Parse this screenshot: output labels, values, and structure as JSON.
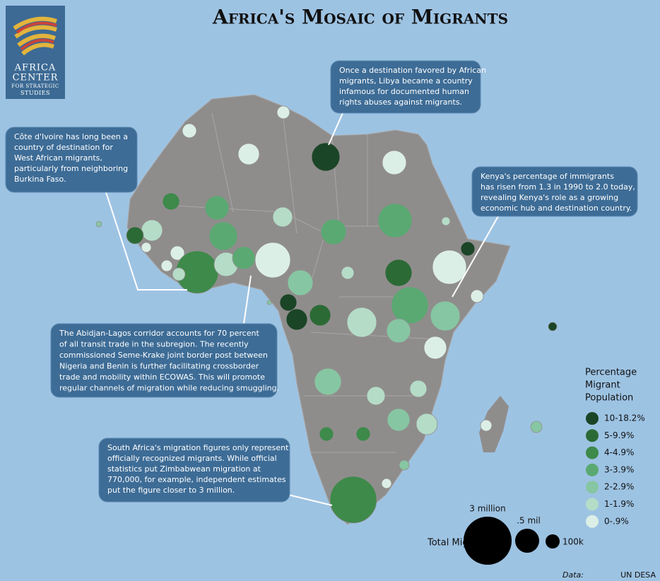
{
  "title": "Africa's Mosaic of Migrants",
  "logo": {
    "lines": [
      "AFRICA",
      "CENTER",
      "FOR STRATEGIC",
      "STUDIES"
    ]
  },
  "callouts": [
    {
      "lines": [
        "Once a destination favored by African",
        "migrants, Libya became a country",
        "infamous for documented human",
        "rights abuses against migrants."
      ]
    },
    {
      "lines": [
        "Côte d'Ivoire has long been a",
        "country of destination for",
        "West African migrants,",
        "particularly from neighboring",
        "Burkina Faso."
      ]
    },
    {
      "lines": [
        "Kenya's percentage of immigrants",
        "has risen from 1.3 in 1990 to 2.0 today,",
        "revealing Kenya's role as a growing",
        "economic hub and destination country."
      ]
    },
    {
      "lines": [
        "The Abidjan-Lagos corridor accounts for 70 percent",
        "of all transit trade in the subregion. The recently",
        "commissioned Seme-Krake joint border post between",
        "Nigeria and Benin is further facilitating crossborder",
        "trade and mobility within ECOWAS. This will promote",
        "regular channels of migration while reducing smuggling."
      ]
    },
    {
      "lines": [
        "South Africa's migration figures only represent",
        "officially recognized migrants. While official",
        "statistics put Zimbabwean migration at",
        "770,000, for example, independent estimates",
        "put the figure closer to 3 million."
      ]
    }
  ],
  "legend": {
    "title": [
      "Percentage",
      "Migrant",
      "Population"
    ],
    "items": [
      {
        "label": "10-18.2%",
        "color": "#1b4527"
      },
      {
        "label": "5-9.9%",
        "color": "#2b6a35"
      },
      {
        "label": "4-4.9%",
        "color": "#3d8a4a"
      },
      {
        "label": "3-3.9%",
        "color": "#5aa972"
      },
      {
        "label": "2-2.9%",
        "color": "#87c6a2"
      },
      {
        "label": "1-1.9%",
        "color": "#b5dcc7"
      },
      {
        "label": "0-.9%",
        "color": "#dcefe6"
      }
    ]
  },
  "size_legend": {
    "title": "Total Migrants",
    "labels": [
      "3 million",
      ".5 mil",
      "100k"
    ]
  },
  "source": {
    "label": "Data:",
    "value": "UN DESA"
  }
}
